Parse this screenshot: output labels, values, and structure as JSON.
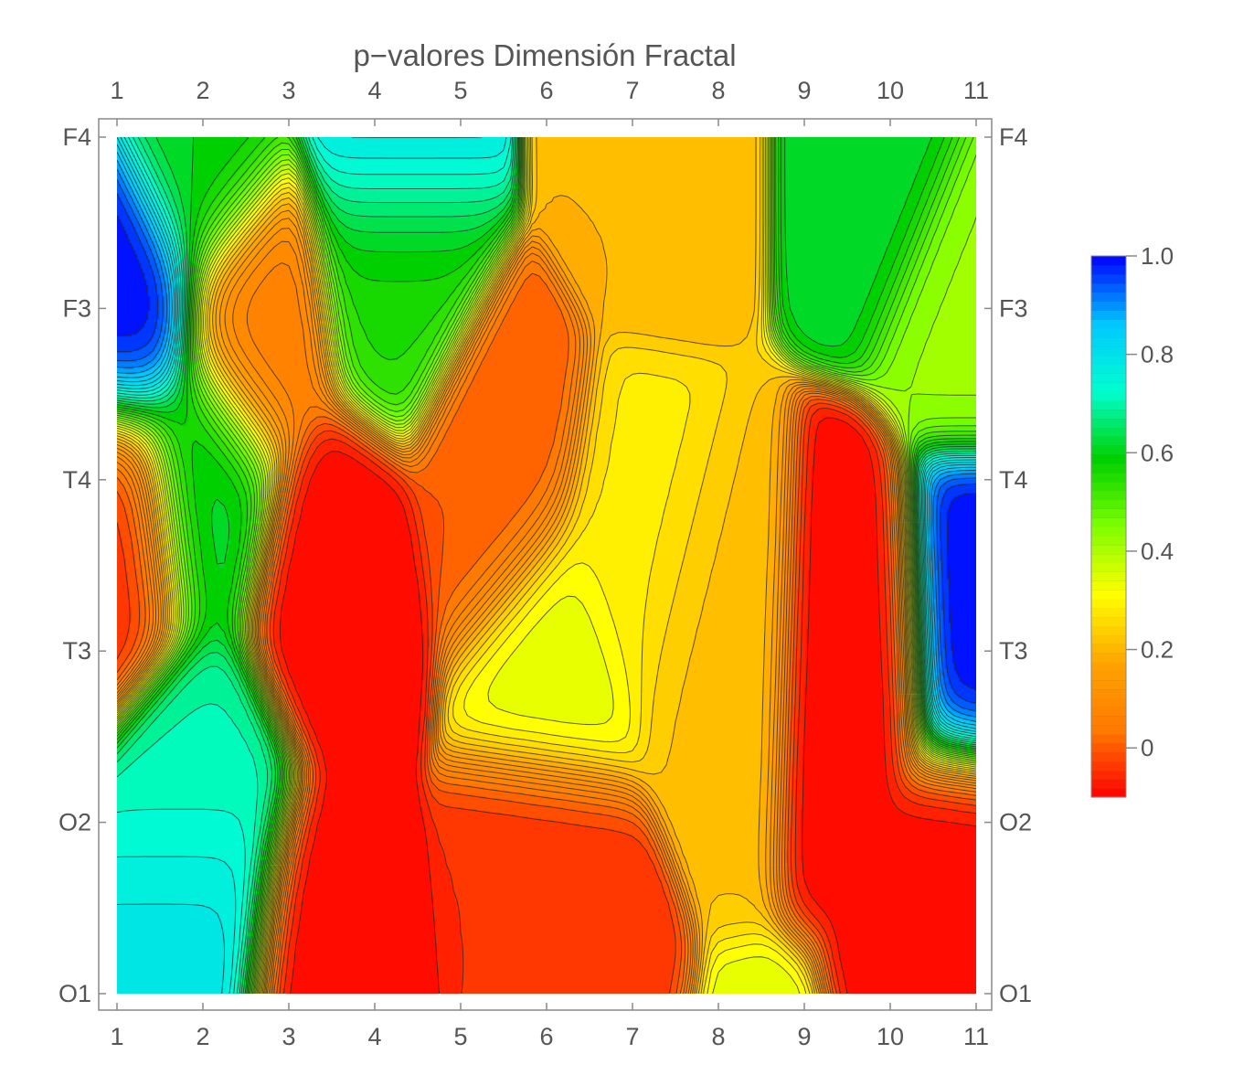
{
  "chart_data": {
    "type": "heatmap",
    "title": "p−valores Dimensión Fractal",
    "x_ticks": [
      "1",
      "2",
      "3",
      "4",
      "5",
      "6",
      "7",
      "8",
      "9",
      "10",
      "11"
    ],
    "y_ticks": [
      "F4",
      "F3",
      "T4",
      "T3",
      "O2",
      "O1"
    ],
    "xlim": [
      1,
      11
    ],
    "ylim_categories_top_to_bottom": [
      "F4",
      "F3",
      "T4",
      "T3",
      "O2",
      "O1"
    ],
    "colorbar": {
      "range": [
        -0.1,
        1.0
      ],
      "ticks": [
        1.0,
        0.8,
        0.6,
        0.4,
        0.2,
        0
      ],
      "tick_labels": [
        "1.0",
        "0.8",
        "0.6",
        "0.4",
        "0.2",
        "0"
      ],
      "colors": [
        "#ff0000",
        "#ff7a00",
        "#ffa500",
        "#ffff00",
        "#7fff00",
        "#00d000",
        "#00ffd0",
        "#00c8ff",
        "#0000ff"
      ]
    },
    "contour_levels": 44,
    "features": [
      {
        "x": 1.1,
        "y": 4.0,
        "value": 1.0
      },
      {
        "x": 1.0,
        "y": 2.75,
        "value": -0.05
      },
      {
        "x": 2.0,
        "y": 0.5,
        "value": 0.8
      },
      {
        "x": 2.0,
        "y": 1.1,
        "value": 0.7
      },
      {
        "x": 2.0,
        "y": 3.0,
        "value": 0.62
      },
      {
        "x": 2.0,
        "y": 4.9,
        "value": 0.6
      },
      {
        "x": 3.4,
        "y": 0.2,
        "value": -0.1
      },
      {
        "x": 3.5,
        "y": 2.4,
        "value": -0.1
      },
      {
        "x": 2.6,
        "y": 3.9,
        "value": 0.05
      },
      {
        "x": 4.2,
        "y": 5.0,
        "value": 0.82
      },
      {
        "x": 4.2,
        "y": 4.3,
        "value": 0.55
      },
      {
        "x": 5.5,
        "y": 3.0,
        "value": 0.0
      },
      {
        "x": 6.1,
        "y": 2.0,
        "value": 0.35
      },
      {
        "x": 7.0,
        "y": 2.6,
        "value": 0.28
      },
      {
        "x": 8.0,
        "y": 2.1,
        "value": 0.22
      },
      {
        "x": 7.2,
        "y": 5.0,
        "value": 0.2
      },
      {
        "x": 6.0,
        "y": 0.6,
        "value": -0.05
      },
      {
        "x": 9.6,
        "y": 2.0,
        "value": -0.1
      },
      {
        "x": 10.9,
        "y": 0.65,
        "value": -0.1
      },
      {
        "x": 10.0,
        "y": 5.0,
        "value": 0.62
      },
      {
        "x": 11.0,
        "y": 2.1,
        "value": 1.0
      },
      {
        "x": 11.0,
        "y": 4.2,
        "value": 0.42
      }
    ]
  }
}
